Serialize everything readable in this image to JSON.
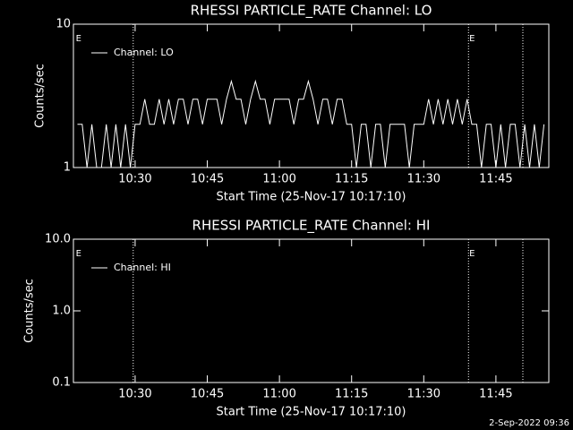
{
  "chart_data": [
    {
      "type": "line",
      "title": "RHESSI PARTICLE_RATE Channel: LO",
      "xlabel": "Start Time (25-Nov-17 10:17:10)",
      "ylabel": "Counts/sec",
      "log_y": true,
      "ylim": [
        1,
        10
      ],
      "yticks": [
        1,
        10
      ],
      "xlim": [
        617.17,
        716
      ],
      "xticks": [
        {
          "value": 630,
          "label": "10:30"
        },
        {
          "value": 645,
          "label": "10:45"
        },
        {
          "value": 660,
          "label": "11:00"
        },
        {
          "value": 675,
          "label": "11:15"
        },
        {
          "value": 690,
          "label": "11:30"
        },
        {
          "value": 705,
          "label": "11:45"
        }
      ],
      "vlines": [
        629.6,
        699.3,
        710.6
      ],
      "annotations": [
        {
          "text": "E",
          "x": 617.5
        },
        {
          "text": "E",
          "x": 699.3
        }
      ],
      "legend": "upper left",
      "series": [
        {
          "name": "Channel: LO",
          "color": "#ffffff",
          "x": [
            618,
            619,
            620,
            621,
            622,
            623,
            624,
            625,
            626,
            627,
            628,
            629,
            630,
            631,
            632,
            633,
            634,
            635,
            636,
            637,
            638,
            639,
            640,
            641,
            642,
            643,
            644,
            645,
            646,
            647,
            648,
            649,
            650,
            651,
            652,
            653,
            654,
            655,
            656,
            657,
            658,
            659,
            660,
            661,
            662,
            663,
            664,
            665,
            666,
            667,
            668,
            669,
            670,
            671,
            672,
            673,
            674,
            675,
            676,
            677,
            678,
            679,
            680,
            681,
            682,
            683,
            684,
            685,
            686,
            687,
            688,
            689,
            690,
            691,
            692,
            693,
            694,
            695,
            696,
            697,
            698,
            699,
            700,
            701,
            702,
            703,
            704,
            705,
            706,
            707,
            708,
            709,
            710,
            711,
            712,
            713,
            714,
            715
          ],
          "values": [
            2,
            2,
            1,
            2,
            1,
            1,
            2,
            1,
            2,
            1,
            2,
            1,
            2,
            2,
            3,
            2,
            2,
            3,
            2,
            3,
            2,
            3,
            3,
            2,
            3,
            3,
            2,
            3,
            3,
            3,
            2,
            3,
            4,
            3,
            3,
            2,
            3,
            4,
            3,
            3,
            2,
            3,
            3,
            3,
            3,
            2,
            3,
            3,
            4,
            3,
            2,
            3,
            3,
            2,
            3,
            3,
            2,
            2,
            1,
            2,
            2,
            1,
            2,
            2,
            1,
            2,
            2,
            2,
            2,
            1,
            2,
            2,
            2,
            3,
            2,
            3,
            2,
            3,
            2,
            3,
            2,
            3,
            2,
            2,
            1,
            2,
            2,
            1,
            2,
            1,
            2,
            2,
            1,
            2,
            1,
            2,
            1,
            2
          ]
        }
      ]
    },
    {
      "type": "line",
      "title": "RHESSI PARTICLE_RATE Channel: HI",
      "xlabel": "Start Time (25-Nov-17 10:17:10)",
      "ylabel": "Counts/sec",
      "log_y": true,
      "ylim": [
        0.1,
        10
      ],
      "yticks": [
        0.1,
        {
          "value": 1,
          "label": "1.0"
        },
        {
          "value": 10,
          "label": "10.0"
        }
      ],
      "xlim": [
        617.17,
        716
      ],
      "xticks": [
        {
          "value": 630,
          "label": "10:30"
        },
        {
          "value": 645,
          "label": "10:45"
        },
        {
          "value": 660,
          "label": "11:00"
        },
        {
          "value": 675,
          "label": "11:15"
        },
        {
          "value": 690,
          "label": "11:30"
        },
        {
          "value": 705,
          "label": "11:45"
        }
      ],
      "vlines": [
        629.6,
        699.3,
        710.6
      ],
      "annotations": [
        {
          "text": "E",
          "x": 617.5
        },
        {
          "text": "E",
          "x": 699.3
        }
      ],
      "legend": "upper left",
      "series": [
        {
          "name": "Channel: HI",
          "color": "#ffffff",
          "x": [],
          "values": []
        }
      ]
    }
  ],
  "footer": "2-Sep-2022 09:36"
}
